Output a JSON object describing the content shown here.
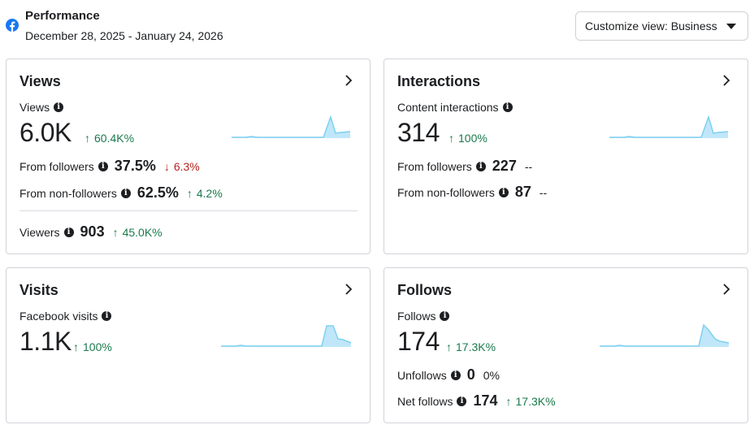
{
  "header": {
    "title": "Performance",
    "date_range": "December 28, 2025 - January 24, 2026",
    "customize_label": "Customize view: Business"
  },
  "colors": {
    "up": "#1a7a4c",
    "down": "#b3261e",
    "spark_line": "#7fd0f0",
    "spark_fill": "#bfe7f9",
    "fb_blue": "#1877f2"
  },
  "cards": {
    "views": {
      "title": "Views",
      "metric_label": "Views",
      "metric_value": "6.0K",
      "metric_change": "60.4K%",
      "from_followers_label": "From followers",
      "from_followers_value": "37.5%",
      "from_followers_change": "6.3%",
      "from_nonfollowers_label": "From non-followers",
      "from_nonfollowers_value": "62.5%",
      "from_nonfollowers_change": "4.2%",
      "viewers_label": "Viewers",
      "viewers_value": "903",
      "viewers_change": "45.0K%"
    },
    "interactions": {
      "title": "Interactions",
      "metric_label": "Content interactions",
      "metric_value": "314",
      "metric_change": "100%",
      "from_followers_label": "From followers",
      "from_followers_value": "227",
      "from_followers_change": "--",
      "from_nonfollowers_label": "From non-followers",
      "from_nonfollowers_value": "87",
      "from_nonfollowers_change": "--"
    },
    "visits": {
      "title": "Visits",
      "metric_label": "Facebook visits",
      "metric_value": "1.1K",
      "metric_change": "100%"
    },
    "follows": {
      "title": "Follows",
      "metric_label": "Follows",
      "metric_value": "174",
      "metric_change": "17.3K%",
      "unfollows_label": "Unfollows",
      "unfollows_value": "0",
      "unfollows_change": "0%",
      "net_label": "Net follows",
      "net_value": "174",
      "net_change": "17.3K%"
    }
  }
}
